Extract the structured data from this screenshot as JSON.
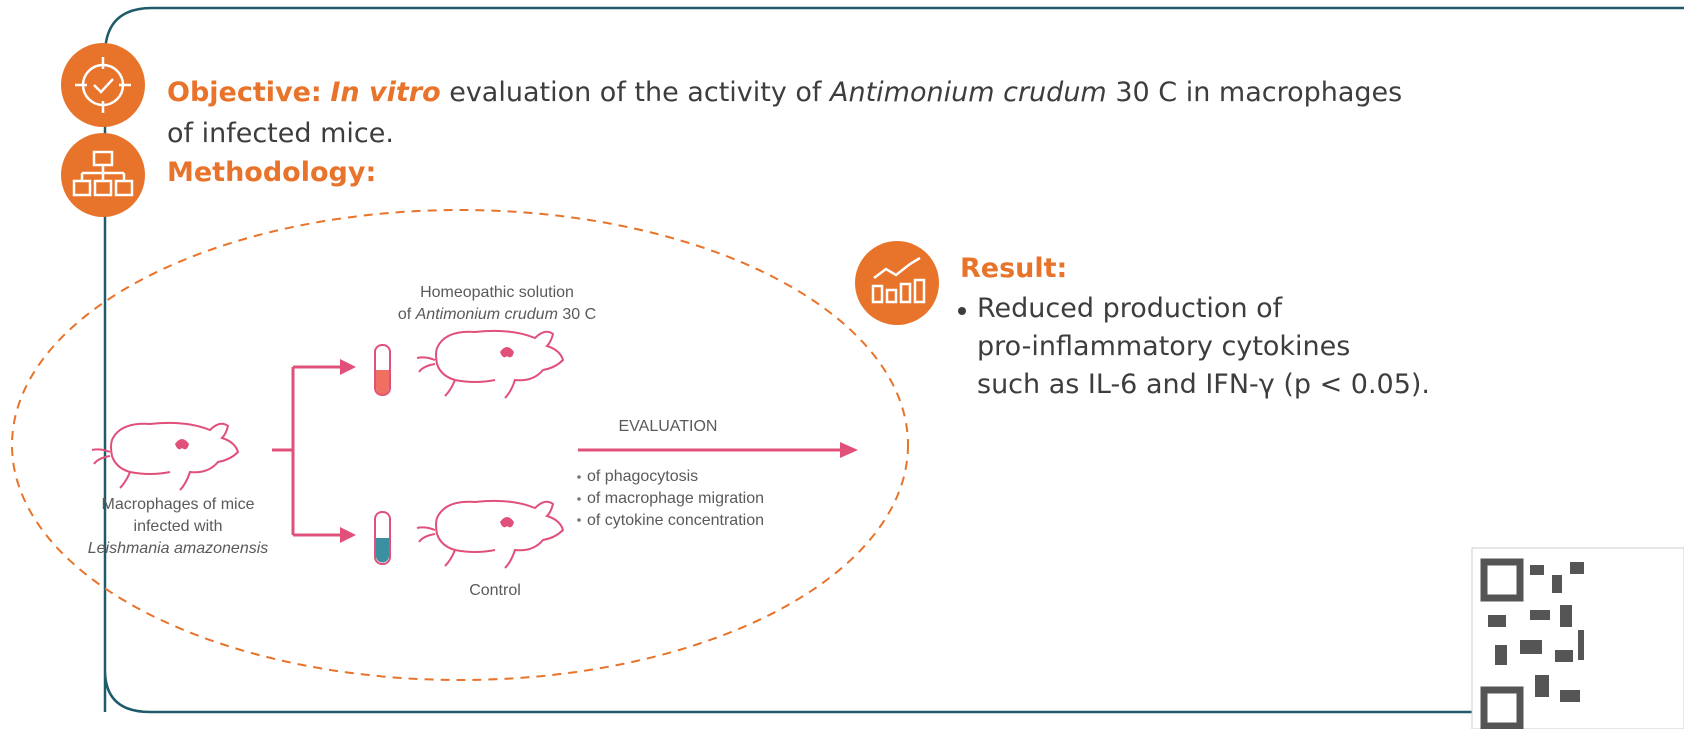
{
  "objective": {
    "label": "Objective:",
    "parts": [
      "In vitro",
      " evaluation of the activity of ",
      "Antimonium crudum",
      " 30 C in macrophages",
      "of infected mice."
    ]
  },
  "methodology": {
    "label": "Methodology:"
  },
  "diagram": {
    "treatment": [
      "Homeopathic solution",
      "of ",
      "Antimonium crudum",
      " 30 C"
    ],
    "source": [
      "Macrophages of mice",
      "infected with",
      "Leishmania amazonensis"
    ],
    "control": "Control",
    "evaluation": "EVALUATION",
    "evaluation_items": [
      "of phagocytosis",
      "of macrophage migration",
      "of cytokine concentration"
    ]
  },
  "result": {
    "label": "Result:",
    "lines": [
      "Reduced production of",
      "pro-inflammatory cytokines",
      "such as IL-6 and IFN-γ (p < 0.05)."
    ]
  }
}
